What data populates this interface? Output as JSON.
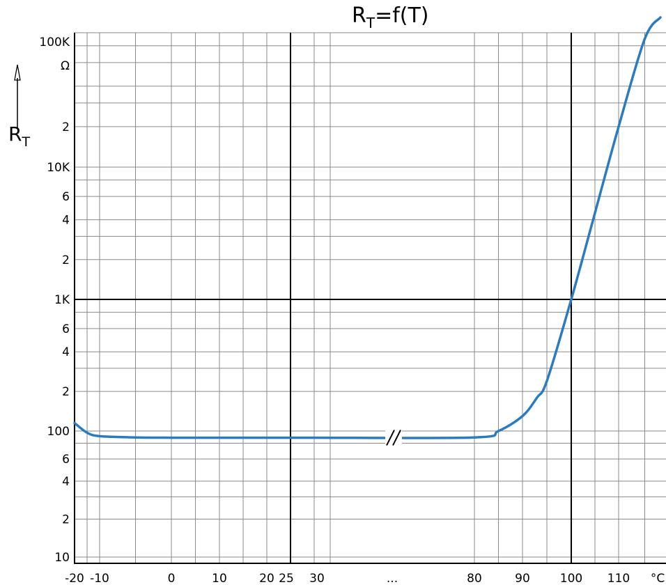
{
  "chart_data": {
    "type": "line",
    "title_main": "R",
    "title_sub": "T",
    "title_rest": "=f(T)",
    "ylabel_main": "R",
    "ylabel_sub": "T",
    "yunit": "Ω",
    "xunit": "°C",
    "x_break_label": "...",
    "yscale": "log",
    "ylim": [
      10,
      130000
    ],
    "x_ticks": [
      {
        "label": "-20"
      },
      {
        "label": "-10"
      },
      {
        "label": "0"
      },
      {
        "label": "10"
      },
      {
        "label": "20"
      },
      {
        "label": "25"
      },
      {
        "label": "30"
      },
      {
        "label": "80"
      },
      {
        "label": "90"
      },
      {
        "label": "100"
      },
      {
        "label": "110"
      }
    ],
    "y_major_labels": [
      "10",
      "100",
      "1K",
      "10K",
      "100K"
    ],
    "y_minor_labels": [
      "2",
      "4",
      "6",
      "2",
      "4",
      "6",
      "2",
      "4",
      "6",
      "2"
    ],
    "reference_lines": {
      "x": "25",
      "x2": "100",
      "y": "1K"
    },
    "series": [
      {
        "color": "#2b7bbf",
        "points": [
          [
            "-20",
            115
          ],
          [
            "-15",
            97
          ],
          [
            "-10",
            91
          ],
          [
            "-5",
            89
          ],
          [
            "0",
            88.5
          ],
          [
            "10",
            88.5
          ],
          [
            "20",
            88.5
          ],
          [
            "25",
            88.5
          ],
          [
            "30",
            88.5
          ],
          [
            "80",
            89
          ],
          [
            "85",
            100
          ],
          [
            "90",
            130
          ],
          [
            "93",
            180
          ],
          [
            "95",
            240
          ],
          [
            "100",
            1000
          ],
          [
            "105",
            4500
          ],
          [
            "110",
            20000
          ],
          [
            "115",
            90000
          ],
          [
            "118",
            130000
          ]
        ]
      }
    ]
  }
}
